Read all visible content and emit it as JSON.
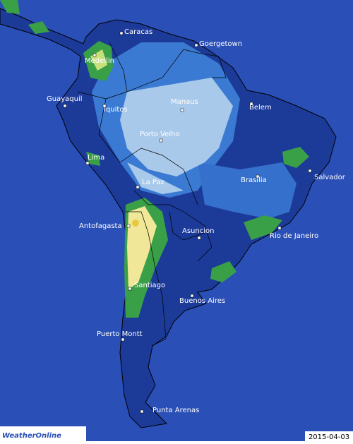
{
  "map": {
    "cities": [
      "Caracas",
      "Goergetown",
      "Medellin",
      "Guayaquil",
      "Iquitos",
      "Manaus",
      "Belem",
      "Porto Velho",
      "Lima",
      "Salvador",
      "La Paz",
      "Brasilia",
      "Antofagasta",
      "Asuncion",
      "Rio de Janeiro",
      "Santiago",
      "Buenos Aires",
      "Puerto Montt",
      "Punta Arenas"
    ]
  },
  "logo": "WeatherOnline",
  "date": "2015-04-03"
}
